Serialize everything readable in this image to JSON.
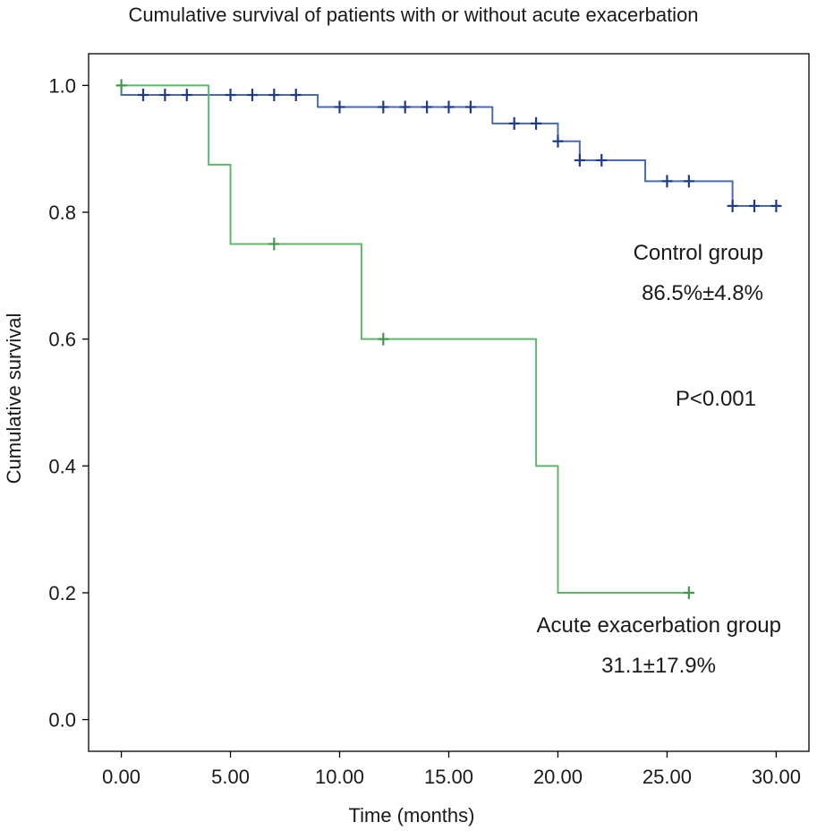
{
  "chart_data": {
    "type": "line",
    "title": "Cumulative survival of patients with or without acute exacerbation",
    "xlabel": "Time (months)",
    "ylabel": "Cumulative survival",
    "xlim": [
      -1.5,
      31.5
    ],
    "ylim": [
      -0.05,
      1.05
    ],
    "x_ticks": [
      0,
      5,
      10,
      15,
      20,
      25,
      30
    ],
    "x_tick_labels": [
      "0.00",
      "5.00",
      "10.00",
      "15.00",
      "20.00",
      "25.00",
      "30.00"
    ],
    "y_ticks": [
      0,
      0.2,
      0.4,
      0.6,
      0.8,
      1.0
    ],
    "y_tick_labels": [
      "0.0",
      "0.2",
      "0.4",
      "0.6",
      "0.8",
      "1.0"
    ],
    "grid": false,
    "step": true,
    "series": [
      {
        "name": "Control group",
        "color": "#4a6bb0",
        "censor_color": "#1f3a8a",
        "steps": [
          [
            0,
            1.0
          ],
          [
            0,
            0.985
          ],
          [
            9,
            0.966
          ],
          [
            17,
            0.94
          ],
          [
            20,
            0.912
          ],
          [
            21,
            0.882
          ],
          [
            24,
            0.849
          ],
          [
            28,
            0.81
          ],
          [
            30,
            0.81
          ]
        ],
        "censored": [
          [
            1,
            0.985
          ],
          [
            2,
            0.985
          ],
          [
            3,
            0.985
          ],
          [
            5,
            0.985
          ],
          [
            6,
            0.985
          ],
          [
            7,
            0.985
          ],
          [
            8,
            0.985
          ],
          [
            10,
            0.966
          ],
          [
            12,
            0.966
          ],
          [
            13,
            0.966
          ],
          [
            14,
            0.966
          ],
          [
            15,
            0.966
          ],
          [
            16,
            0.966
          ],
          [
            18,
            0.94
          ],
          [
            19,
            0.94
          ],
          [
            20,
            0.912
          ],
          [
            21,
            0.882
          ],
          [
            22,
            0.882
          ],
          [
            25,
            0.849
          ],
          [
            26,
            0.849
          ],
          [
            28,
            0.81
          ],
          [
            29,
            0.81
          ],
          [
            30,
            0.81
          ]
        ]
      },
      {
        "name": "Acute exacerbation group",
        "color": "#5fb86a",
        "censor_color": "#3f9a4c",
        "steps": [
          [
            0,
            1.0
          ],
          [
            4,
            0.875
          ],
          [
            5,
            0.75
          ],
          [
            11,
            0.6
          ],
          [
            19,
            0.4
          ],
          [
            20,
            0.2
          ],
          [
            26,
            0.2
          ]
        ],
        "censored": [
          [
            0,
            1.0
          ],
          [
            7,
            0.75
          ],
          [
            12,
            0.6
          ],
          [
            26,
            0.2
          ]
        ]
      }
    ],
    "annotations": {
      "control_label": "Control group",
      "control_value": "86.5%±4.8%",
      "p_value": "P<0.001",
      "acute_label": "Acute exacerbation group",
      "acute_value": "31.1±17.9%"
    }
  }
}
